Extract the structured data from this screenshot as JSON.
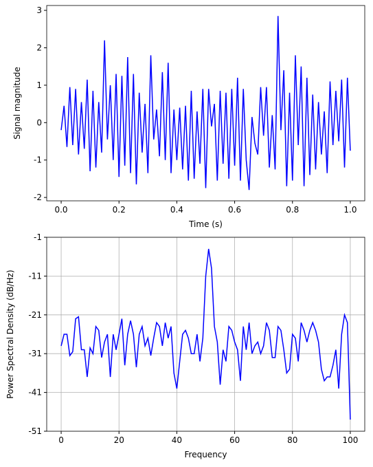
{
  "chart_data": [
    {
      "type": "line",
      "xlabel": "Time (s)",
      "ylabel": "Signal magnitude",
      "xlim": [
        -0.05,
        1.05
      ],
      "ylim": [
        -2.09,
        3.13
      ],
      "xticks": [
        {
          "value": 0,
          "label": "0.0"
        },
        {
          "value": 0.2,
          "label": "0.2"
        },
        {
          "value": 0.4,
          "label": "0.4"
        },
        {
          "value": 0.6,
          "label": "0.6"
        },
        {
          "value": 0.8,
          "label": "0.8"
        },
        {
          "value": 1,
          "label": "1.0"
        }
      ],
      "yticks": [
        -2,
        -1,
        0,
        1,
        2,
        3
      ],
      "grid": false,
      "x": [
        0,
        0.01,
        0.02,
        0.03,
        0.04,
        0.05,
        0.06,
        0.07,
        0.08,
        0.09,
        0.1,
        0.11,
        0.12,
        0.13,
        0.14,
        0.15,
        0.16,
        0.17,
        0.18,
        0.19,
        0.2,
        0.21,
        0.22,
        0.23,
        0.24,
        0.25,
        0.26,
        0.27,
        0.28,
        0.29,
        0.3,
        0.31,
        0.32,
        0.33,
        0.34,
        0.35,
        0.36,
        0.37,
        0.38,
        0.39,
        0.4,
        0.41,
        0.42,
        0.43,
        0.44,
        0.45,
        0.46,
        0.47,
        0.48,
        0.49,
        0.5,
        0.51,
        0.52,
        0.53,
        0.54,
        0.55,
        0.56,
        0.57,
        0.58,
        0.59,
        0.6,
        0.61,
        0.62,
        0.63,
        0.64,
        0.65,
        0.66,
        0.67,
        0.68,
        0.69,
        0.7,
        0.71,
        0.72,
        0.73,
        0.74,
        0.75,
        0.76,
        0.77,
        0.78,
        0.79,
        0.8,
        0.81,
        0.82,
        0.83,
        0.84,
        0.85,
        0.86,
        0.87,
        0.88,
        0.89,
        0.9,
        0.91,
        0.92,
        0.93,
        0.94,
        0.95,
        0.96,
        0.97,
        0.98,
        0.99,
        1
      ],
      "series": [
        {
          "name": "signal",
          "color": "#0000ff",
          "values": [
            -0.2,
            0.45,
            -0.65,
            0.95,
            -0.6,
            0.9,
            -0.85,
            0.55,
            -0.7,
            1.15,
            -1.3,
            0.85,
            -1.2,
            0.55,
            -0.8,
            2.2,
            -0.45,
            1.0,
            -1.0,
            1.3,
            -1.45,
            1.25,
            -1.15,
            1.75,
            -1.35,
            1.3,
            -1.65,
            0.8,
            -0.8,
            0.5,
            -1.35,
            1.8,
            -0.45,
            0.35,
            -0.9,
            1.35,
            -1.0,
            1.6,
            -1.35,
            0.35,
            -1.0,
            0.4,
            -1.25,
            0.45,
            -1.55,
            0.85,
            -1.5,
            0.3,
            -1.1,
            0.9,
            -1.75,
            0.9,
            -0.1,
            0.5,
            -1.55,
            0.85,
            -1.1,
            0.8,
            -1.5,
            0.9,
            -1.15,
            1.2,
            -1.55,
            0.9,
            -1.0,
            -1.8,
            0.15,
            -0.55,
            -0.85,
            0.95,
            -0.35,
            0.95,
            -1.2,
            0.2,
            -1.25,
            2.85,
            -0.2,
            1.4,
            -1.7,
            0.8,
            -1.55,
            1.8,
            -0.6,
            1.5,
            -1.7,
            1.2,
            -1.4,
            0.75,
            -1.25,
            0.55,
            -0.85,
            0.3,
            -1.35,
            1.1,
            -0.6,
            0.85,
            -0.5,
            1.15,
            -1.2,
            1.2,
            -0.75
          ]
        }
      ]
    },
    {
      "type": "line",
      "xlabel": "Frequency",
      "ylabel": "Power Spectral Density (dB/Hz)",
      "xlim": [
        -5,
        105
      ],
      "ylim": [
        -51,
        -1
      ],
      "xticks": [
        0,
        20,
        40,
        60,
        80,
        100
      ],
      "yticks": [
        -51,
        -41,
        -31,
        -21,
        -11,
        -1
      ],
      "grid": true,
      "x": [
        0,
        1,
        2,
        3,
        4,
        5,
        6,
        7,
        8,
        9,
        10,
        11,
        12,
        13,
        14,
        15,
        16,
        17,
        18,
        19,
        20,
        21,
        22,
        23,
        24,
        25,
        26,
        27,
        28,
        29,
        30,
        31,
        32,
        33,
        34,
        35,
        36,
        37,
        38,
        39,
        40,
        41,
        42,
        43,
        44,
        45,
        46,
        47,
        48,
        49,
        50,
        51,
        52,
        53,
        54,
        55,
        56,
        57,
        58,
        59,
        60,
        61,
        62,
        63,
        64,
        65,
        66,
        67,
        68,
        69,
        70,
        71,
        72,
        73,
        74,
        75,
        76,
        77,
        78,
        79,
        80,
        81,
        82,
        83,
        84,
        85,
        86,
        87,
        88,
        89,
        90,
        91,
        92,
        93,
        94,
        95,
        96,
        97,
        98,
        99,
        100
      ],
      "series": [
        {
          "name": "psd",
          "color": "#0000ff",
          "values": [
            -29,
            -26,
            -26,
            -31.5,
            -30.5,
            -22,
            -21.5,
            -30,
            -30,
            -37,
            -29.5,
            -31,
            -24,
            -25,
            -32,
            -28,
            -26,
            -37,
            -26,
            -30,
            -26,
            -22,
            -34,
            -26,
            -22.5,
            -26,
            -34.5,
            -26,
            -24,
            -29,
            -27,
            -31.5,
            -27,
            -23,
            -24,
            -29,
            -23,
            -27,
            -24,
            -36,
            -40,
            -33,
            -26,
            -25,
            -27,
            -31,
            -31,
            -26,
            -33,
            -27,
            -11,
            -4,
            -9,
            -24,
            -28,
            -39,
            -30,
            -33,
            -24,
            -25,
            -28,
            -30,
            -38,
            -24,
            -30,
            -23,
            -31,
            -29,
            -28,
            -31,
            -29,
            -23,
            -25,
            -32,
            -32,
            -24,
            -25,
            -30,
            -36,
            -35,
            -26,
            -27,
            -33,
            -23,
            -25,
            -28,
            -25,
            -23,
            -25,
            -28,
            -35,
            -38,
            -37,
            -37,
            -34,
            -30,
            -40,
            -26,
            -21,
            -23,
            -48
          ]
        }
      ]
    }
  ]
}
